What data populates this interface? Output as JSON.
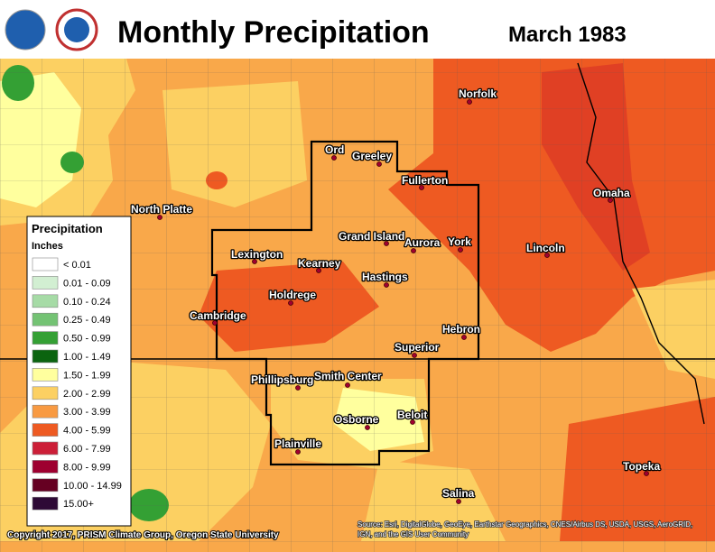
{
  "header": {
    "title": "Monthly Precipitation",
    "period": "March 1983"
  },
  "cities": [
    "North Platte",
    "Ord",
    "Greeley",
    "Fullerton",
    "Norfolk",
    "Omaha",
    "Lexington",
    "Grand Island",
    "Aurora",
    "York",
    "Lincoln",
    "Kearney",
    "Hastings",
    "Holdrege",
    "Cambridge",
    "Hebron",
    "Superior",
    "Phillipsburg",
    "Smith Center",
    "Beloit",
    "Osborne",
    "Plainville",
    "Salina",
    "Topeka"
  ],
  "legend": {
    "title": "Precipitation",
    "units": "Inches",
    "entries": [
      {
        "label": "< 0.01",
        "color": "#ffffff"
      },
      {
        "label": "0.01 - 0.09",
        "color": "#d2efd2"
      },
      {
        "label": "0.10 - 0.24",
        "color": "#a6dba6"
      },
      {
        "label": "0.25 - 0.49",
        "color": "#74c374"
      },
      {
        "label": "0.50 - 0.99",
        "color": "#34a034"
      },
      {
        "label": "1.00 - 1.49",
        "color": "#0b640f"
      },
      {
        "label": "1.50 - 1.99",
        "color": "#ffff9e"
      },
      {
        "label": "2.00 - 2.99",
        "color": "#fcd062"
      },
      {
        "label": "3.00 - 3.99",
        "color": "#f89a42"
      },
      {
        "label": "4.00 - 5.99",
        "color": "#ee5a22"
      },
      {
        "label": "6.00 - 7.99",
        "color": "#cc1f38"
      },
      {
        "label": "8.00 - 9.99",
        "color": "#9e0030"
      },
      {
        "label": "10.00 - 14.99",
        "color": "#660022"
      },
      {
        "label": "15.00+",
        "color": "#2e0a36"
      }
    ]
  },
  "footer": {
    "copyright": "Copyright 2017, PRISM Climate Group, Oregon State University",
    "source": [
      "Source: Esri, DigitalGlobe, GeoEye, Earthstar Geographics, CNES/Airbus DS, USDA, USGS, AeroGRID,",
      "IGN, and the GIS User Community"
    ]
  }
}
